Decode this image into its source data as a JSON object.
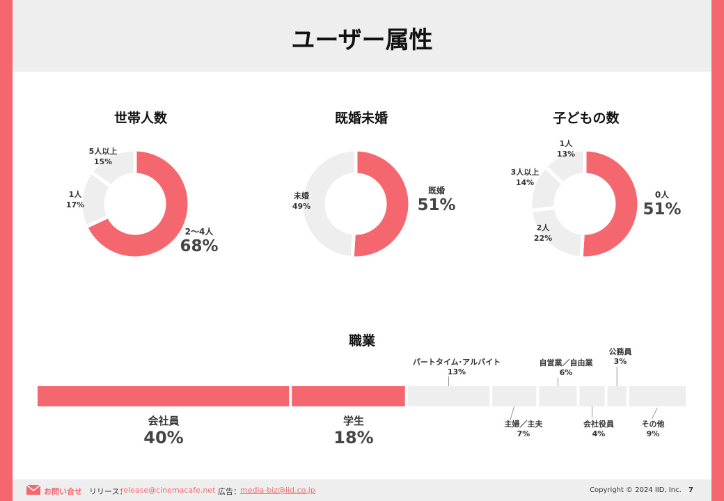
{
  "page": {
    "title": "ユーザー属性",
    "page_number": "7"
  },
  "colors": {
    "accent": "#f4676e",
    "muted": "#eeeeee",
    "frame": "#f4676e"
  },
  "household": {
    "title": "世帯人数",
    "chart_data": {
      "type": "pie",
      "title": "世帯人数",
      "categories": [
        "2〜4人",
        "1人",
        "5人以上"
      ],
      "values": [
        68,
        17,
        15
      ],
      "unit": "%"
    },
    "labels": [
      {
        "name": "2〜4人",
        "value": "68%"
      },
      {
        "name": "1人",
        "value": "17%"
      },
      {
        "name": "5人以上",
        "value": "15%"
      }
    ]
  },
  "marital": {
    "title": "既婚未婚",
    "chart_data": {
      "type": "pie",
      "title": "既婚未婚",
      "categories": [
        "既婚",
        "未婚"
      ],
      "values": [
        51,
        49
      ],
      "unit": "%"
    },
    "labels": [
      {
        "name": "既婚",
        "value": "51%"
      },
      {
        "name": "未婚",
        "value": "49%"
      }
    ]
  },
  "children": {
    "title": "子どもの数",
    "chart_data": {
      "type": "pie",
      "title": "子どもの数",
      "categories": [
        "0人",
        "2人",
        "3人以上",
        "1人"
      ],
      "values": [
        51,
        22,
        14,
        13
      ],
      "unit": "%"
    },
    "labels": [
      {
        "name": "0人",
        "value": "51%"
      },
      {
        "name": "2人",
        "value": "22%"
      },
      {
        "name": "3人以上",
        "value": "14%"
      },
      {
        "name": "1人",
        "value": "13%"
      }
    ]
  },
  "occupation": {
    "title": "職業",
    "chart_data": {
      "type": "bar",
      "title": "職業",
      "orientation": "stacked-horizontal",
      "categories": [
        "会社員",
        "学生",
        "パートタイム･アルバイト",
        "主婦／主夫",
        "自営業／自由業",
        "会社役員",
        "公務員",
        "その他"
      ],
      "values": [
        40,
        18,
        13,
        7,
        6,
        4,
        3,
        9
      ],
      "unit": "%"
    },
    "labels": [
      {
        "name": "会社員",
        "value": "40%"
      },
      {
        "name": "学生",
        "value": "18%"
      },
      {
        "name": "パートタイム･アルバイト",
        "value": "13%"
      },
      {
        "name": "主婦／主夫",
        "value": "7%"
      },
      {
        "name": "自営業／自由業",
        "value": "6%"
      },
      {
        "name": "会社役員",
        "value": "4%"
      },
      {
        "name": "公務員",
        "value": "3%"
      },
      {
        "name": "その他",
        "value": "9%"
      }
    ]
  },
  "footer": {
    "contact_label": "お問い合せ",
    "release_label": "リリース：",
    "release_email": "release@cinemacafe.net",
    "ad_label": "広告：",
    "ad_email": "media-biz@iid.co.jp",
    "copyright": "Copyright © 2024 IID, Inc."
  }
}
